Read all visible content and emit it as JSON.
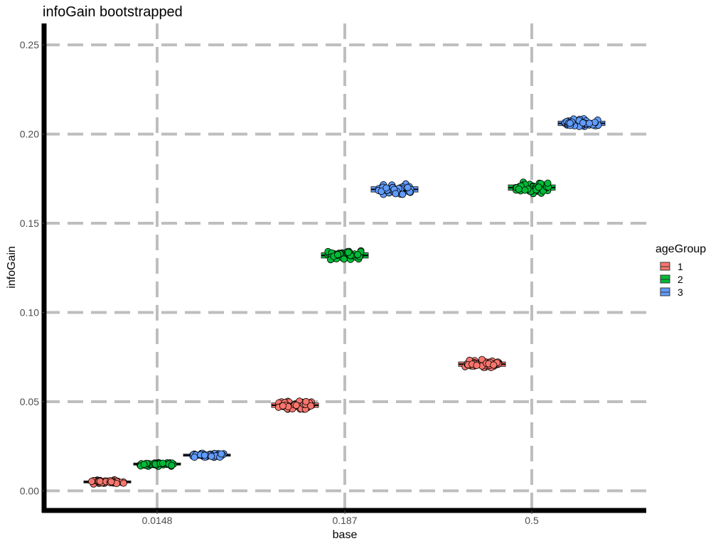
{
  "chart_data": {
    "type": "box-jitter",
    "title": "infoGain bootstrapped",
    "xlabel": "base",
    "ylabel": "infoGain",
    "categories": [
      "0.0148",
      "0.187",
      "0.5"
    ],
    "ylim": [
      -0.011,
      0.262
    ],
    "yticks": [
      0.0,
      0.05,
      0.1,
      0.15,
      0.2,
      0.25
    ],
    "ytick_labels": [
      "0.00",
      "0.05",
      "0.10",
      "0.15",
      "0.20",
      "0.25"
    ],
    "grid": true,
    "legend": {
      "title": "ageGroup",
      "position": "right"
    },
    "series": [
      {
        "name": "1",
        "color": "#F8766D",
        "values": [
          0.005,
          0.048,
          0.071
        ],
        "spread": [
          0.0012,
          0.0025,
          0.0025
        ]
      },
      {
        "name": "2",
        "color": "#00BA38",
        "values": [
          0.015,
          0.132,
          0.17
        ],
        "spread": [
          0.0012,
          0.003,
          0.003
        ]
      },
      {
        "name": "3",
        "color": "#619CFF",
        "values": [
          0.02,
          0.169,
          0.206
        ],
        "spread": [
          0.0012,
          0.003,
          0.0025
        ]
      }
    ]
  }
}
